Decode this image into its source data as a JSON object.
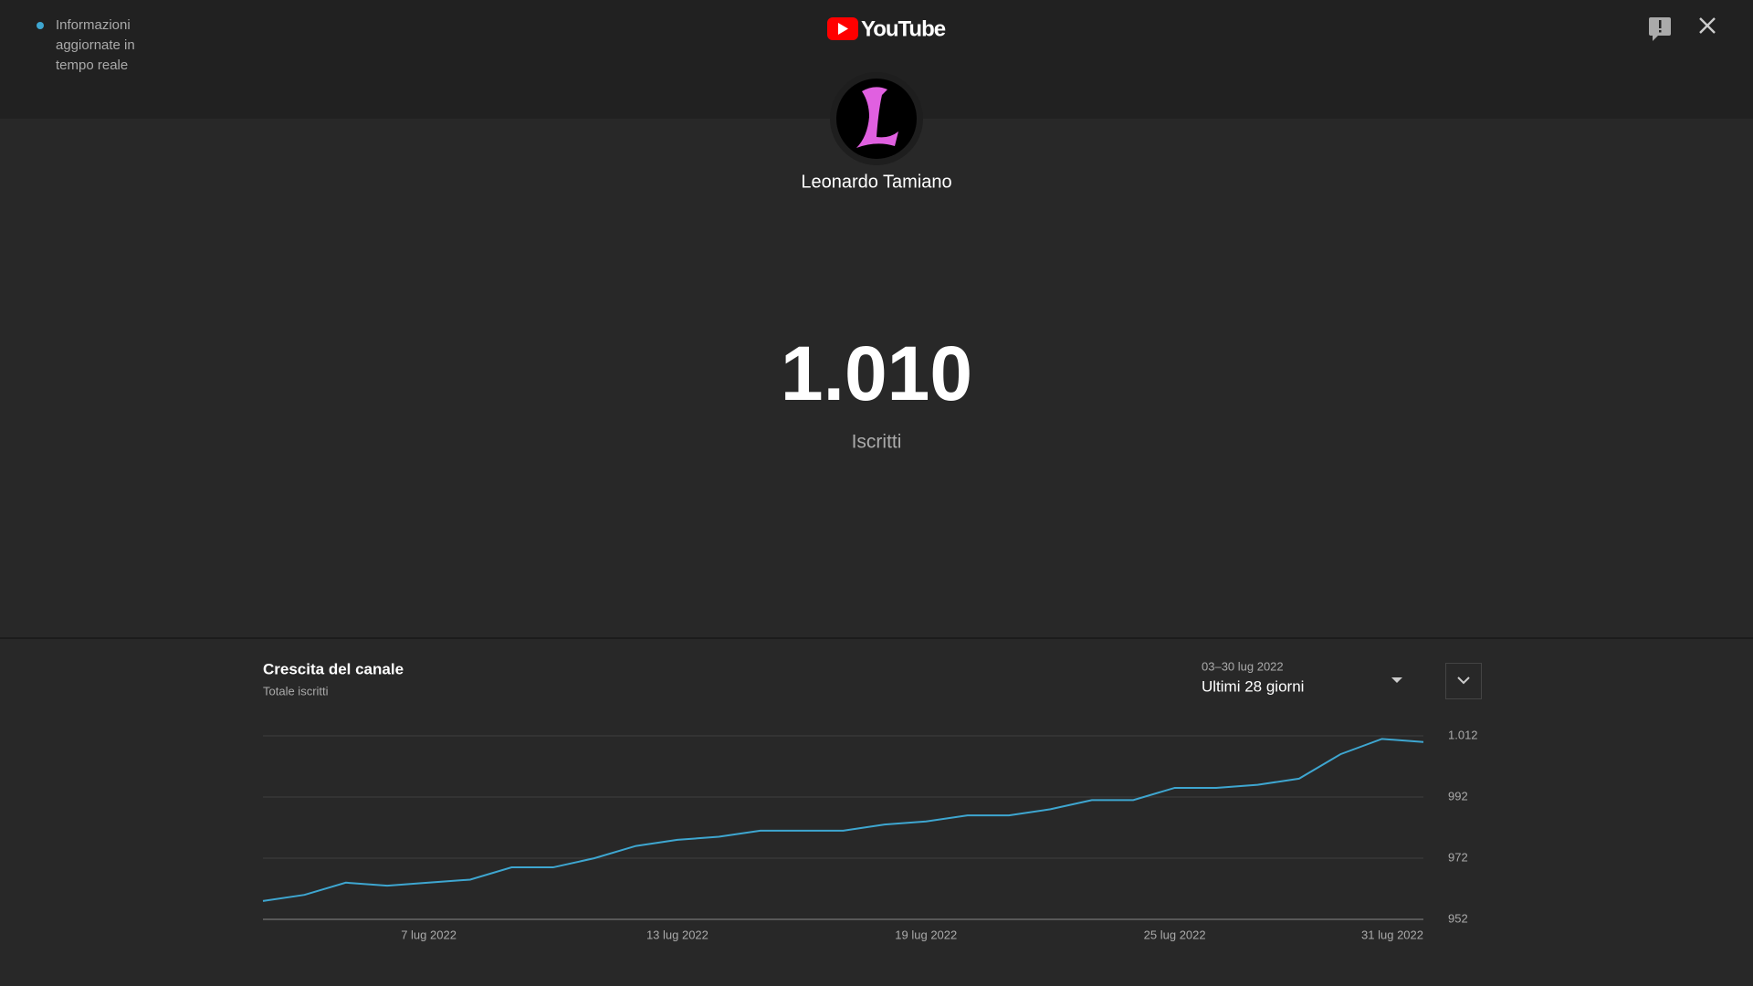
{
  "header": {
    "live_status": "Informazioni aggiornate in tempo reale",
    "logo": "YouTube"
  },
  "channel": {
    "name": "Leonardo Tamiano"
  },
  "stats": {
    "count": "1.010",
    "label": "Iscritti"
  },
  "panel": {
    "date_range": "03–30 lug 2022",
    "period": "Ultimi 28 giorni"
  },
  "chart_data": {
    "type": "line",
    "title": "Crescita del canale",
    "subtitle": "Totale iscritti",
    "categories": [
      null,
      null,
      null,
      null,
      "7 lug 2022",
      null,
      null,
      null,
      null,
      null,
      "13 lug 2022",
      null,
      null,
      null,
      null,
      null,
      "19 lug 2022",
      null,
      null,
      null,
      null,
      null,
      "25 lug 2022",
      null,
      null,
      null,
      null,
      null,
      "31 lug 2022"
    ],
    "values": [
      958,
      960,
      964,
      963,
      964,
      965,
      969,
      969,
      972,
      976,
      978,
      979,
      981,
      981,
      981,
      983,
      984,
      986,
      986,
      988,
      991,
      991,
      995,
      995,
      996,
      998,
      1006,
      1011,
      1010
    ],
    "color": "#3ea6d0",
    "ylim": [
      952,
      1012
    ],
    "yticks": [
      952,
      972,
      992,
      {
        "value": 1012,
        "label": "1.012"
      }
    ],
    "grid": true
  }
}
